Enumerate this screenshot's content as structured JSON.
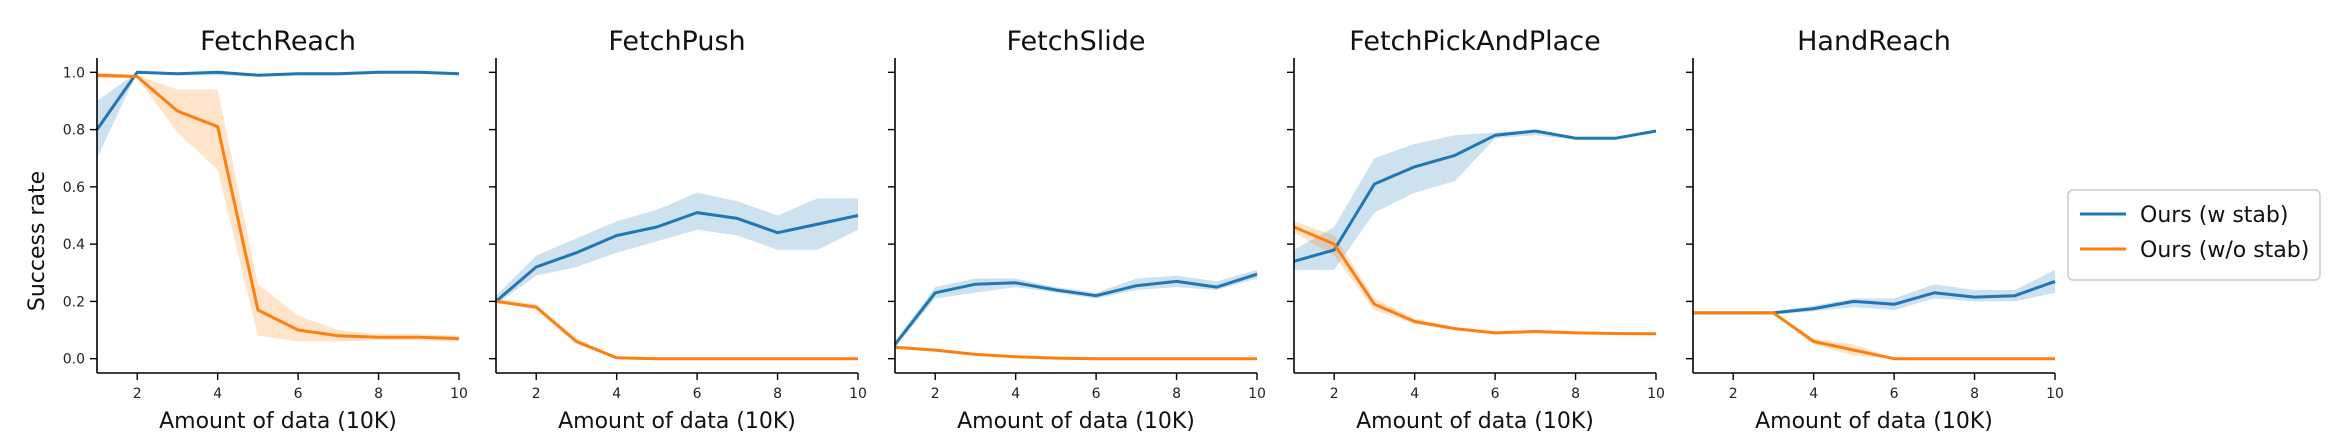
{
  "figure": {
    "ylabel": "Success rate",
    "legend_placement": "right"
  },
  "legend": [
    {
      "name": "Ours (w stab)",
      "color": "#1f77b4"
    },
    {
      "name": "Ours (w/o stab)",
      "color": "#ff7f0e"
    }
  ],
  "chart_data": [
    {
      "type": "line",
      "title": "FetchReach",
      "xlabel": "Amount of data (10K)",
      "ylabel": "Success rate",
      "xlim": [
        1,
        10
      ],
      "ylim": [
        -0.05,
        1.05
      ],
      "xticks": [
        2,
        4,
        6,
        8,
        10
      ],
      "yticks": [
        0.0,
        0.2,
        0.4,
        0.6,
        0.8,
        1.0
      ],
      "ytick_labels": [
        "0.0",
        "0.2",
        "0.4",
        "0.6",
        "0.8",
        "1.0"
      ],
      "x": [
        1,
        2,
        3,
        4,
        5,
        6,
        7,
        8,
        9,
        10
      ],
      "series": [
        {
          "name": "Ours (w stab)",
          "color": "#1f77b4",
          "values": [
            0.8,
            1.0,
            0.995,
            1.0,
            0.99,
            0.995,
            0.995,
            1.0,
            1.0,
            0.995
          ],
          "lower": [
            0.7,
            1.0,
            0.99,
            0.99,
            0.985,
            0.99,
            0.99,
            0.995,
            0.995,
            0.99
          ],
          "upper": [
            0.9,
            1.0,
            1.0,
            1.0,
            0.995,
            1.0,
            1.0,
            1.0,
            1.0,
            1.0
          ]
        },
        {
          "name": "Ours (w/o stab)",
          "color": "#ff7f0e",
          "values": [
            0.99,
            0.985,
            0.865,
            0.81,
            0.17,
            0.1,
            0.08,
            0.075,
            0.075,
            0.07
          ],
          "lower": [
            0.98,
            0.98,
            0.79,
            0.66,
            0.08,
            0.06,
            0.06,
            0.065,
            0.065,
            0.06
          ],
          "upper": [
            1.0,
            0.99,
            0.94,
            0.94,
            0.26,
            0.15,
            0.1,
            0.085,
            0.085,
            0.08
          ]
        }
      ]
    },
    {
      "type": "line",
      "title": "FetchPush",
      "xlabel": "Amount of data (10K)",
      "xlim": [
        1,
        10
      ],
      "ylim": [
        -0.05,
        1.05
      ],
      "xticks": [
        2,
        4,
        6,
        8,
        10
      ],
      "yticks": [
        0.0,
        0.2,
        0.4,
        0.6,
        0.8,
        1.0
      ],
      "x": [
        1,
        2,
        3,
        4,
        5,
        6,
        7,
        8,
        9,
        10
      ],
      "series": [
        {
          "name": "Ours (w stab)",
          "color": "#1f77b4",
          "values": [
            0.2,
            0.32,
            0.37,
            0.43,
            0.46,
            0.51,
            0.49,
            0.44,
            0.47,
            0.5
          ],
          "lower": [
            0.19,
            0.29,
            0.32,
            0.37,
            0.41,
            0.45,
            0.43,
            0.38,
            0.38,
            0.45
          ],
          "upper": [
            0.22,
            0.36,
            0.42,
            0.48,
            0.52,
            0.58,
            0.55,
            0.5,
            0.56,
            0.56
          ]
        },
        {
          "name": "Ours (w/o stab)",
          "color": "#ff7f0e",
          "values": [
            0.2,
            0.18,
            0.06,
            0.003,
            0.0,
            0.0,
            0.0,
            0.0,
            0.0,
            0.0
          ],
          "lower": [
            0.2,
            0.17,
            0.05,
            0.0,
            0.0,
            0.0,
            0.0,
            0.0,
            0.0,
            0.0
          ],
          "upper": [
            0.21,
            0.19,
            0.07,
            0.006,
            0.0,
            0.0,
            0.0,
            0.0,
            0.0,
            0.0
          ]
        }
      ]
    },
    {
      "type": "line",
      "title": "FetchSlide",
      "xlabel": "Amount of data (10K)",
      "xlim": [
        1,
        10
      ],
      "ylim": [
        -0.05,
        1.05
      ],
      "xticks": [
        2,
        4,
        6,
        8,
        10
      ],
      "yticks": [
        0.0,
        0.2,
        0.4,
        0.6,
        0.8,
        1.0
      ],
      "x": [
        1,
        2,
        3,
        4,
        5,
        6,
        7,
        8,
        9,
        10
      ],
      "series": [
        {
          "name": "Ours (w stab)",
          "color": "#1f77b4",
          "values": [
            0.05,
            0.23,
            0.26,
            0.265,
            0.24,
            0.22,
            0.255,
            0.27,
            0.25,
            0.295
          ],
          "lower": [
            0.04,
            0.21,
            0.23,
            0.25,
            0.23,
            0.21,
            0.24,
            0.25,
            0.24,
            0.28
          ],
          "upper": [
            0.06,
            0.25,
            0.28,
            0.28,
            0.25,
            0.23,
            0.28,
            0.29,
            0.27,
            0.31
          ]
        },
        {
          "name": "Ours (w/o stab)",
          "color": "#ff7f0e",
          "values": [
            0.04,
            0.03,
            0.015,
            0.007,
            0.002,
            0.0,
            0.0,
            0.0,
            0.0,
            0.0
          ],
          "lower": [
            0.035,
            0.027,
            0.012,
            0.005,
            0.001,
            0.0,
            0.0,
            0.0,
            0.0,
            0.0
          ],
          "upper": [
            0.045,
            0.033,
            0.018,
            0.009,
            0.003,
            0.0,
            0.0,
            0.0,
            0.0,
            0.0
          ]
        }
      ]
    },
    {
      "type": "line",
      "title": "FetchPickAndPlace",
      "xlabel": "Amount of data (10K)",
      "xlim": [
        1,
        10
      ],
      "ylim": [
        -0.05,
        1.05
      ],
      "xticks": [
        2,
        4,
        6,
        8,
        10
      ],
      "yticks": [
        0.0,
        0.2,
        0.4,
        0.6,
        0.8,
        1.0
      ],
      "x": [
        1,
        2,
        3,
        4,
        5,
        6,
        7,
        8,
        9,
        10
      ],
      "series": [
        {
          "name": "Ours (w stab)",
          "color": "#1f77b4",
          "values": [
            0.34,
            0.38,
            0.61,
            0.67,
            0.71,
            0.78,
            0.795,
            0.77,
            0.77,
            0.795
          ],
          "lower": [
            0.31,
            0.31,
            0.51,
            0.58,
            0.62,
            0.77,
            0.78,
            0.765,
            0.765,
            0.79
          ],
          "upper": [
            0.38,
            0.46,
            0.7,
            0.75,
            0.78,
            0.79,
            0.8,
            0.775,
            0.775,
            0.8
          ]
        },
        {
          "name": "Ours (w/o stab)",
          "color": "#ff7f0e",
          "values": [
            0.46,
            0.4,
            0.19,
            0.13,
            0.105,
            0.09,
            0.095,
            0.09,
            0.088,
            0.087
          ],
          "lower": [
            0.44,
            0.36,
            0.17,
            0.12,
            0.1,
            0.085,
            0.09,
            0.085,
            0.085,
            0.085
          ],
          "upper": [
            0.48,
            0.43,
            0.21,
            0.14,
            0.11,
            0.095,
            0.1,
            0.095,
            0.09,
            0.09
          ]
        }
      ]
    },
    {
      "type": "line",
      "title": "HandReach",
      "xlabel": "Amount of data (10K)",
      "xlim": [
        1,
        10
      ],
      "ylim": [
        -0.05,
        1.05
      ],
      "xticks": [
        2,
        4,
        6,
        8,
        10
      ],
      "yticks": [
        0.0,
        0.2,
        0.4,
        0.6,
        0.8,
        1.0
      ],
      "x": [
        1,
        2,
        3,
        4,
        5,
        6,
        7,
        8,
        9,
        10
      ],
      "series": [
        {
          "name": "Ours (w stab)",
          "color": "#1f77b4",
          "values": [
            0.16,
            0.16,
            0.16,
            0.175,
            0.2,
            0.19,
            0.23,
            0.215,
            0.22,
            0.27
          ],
          "lower": [
            0.155,
            0.155,
            0.155,
            0.165,
            0.18,
            0.17,
            0.21,
            0.2,
            0.2,
            0.23
          ],
          "upper": [
            0.165,
            0.165,
            0.165,
            0.185,
            0.21,
            0.21,
            0.26,
            0.24,
            0.24,
            0.31
          ]
        },
        {
          "name": "Ours (w/o stab)",
          "color": "#ff7f0e",
          "values": [
            0.16,
            0.16,
            0.16,
            0.06,
            0.03,
            0.0,
            0.0,
            0.0,
            0.0,
            0.0
          ],
          "lower": [
            0.155,
            0.155,
            0.155,
            0.05,
            0.01,
            0.0,
            0.0,
            0.0,
            0.0,
            0.0
          ],
          "upper": [
            0.165,
            0.165,
            0.165,
            0.07,
            0.05,
            0.0,
            0.0,
            0.0,
            0.0,
            0.0
          ]
        }
      ]
    }
  ]
}
